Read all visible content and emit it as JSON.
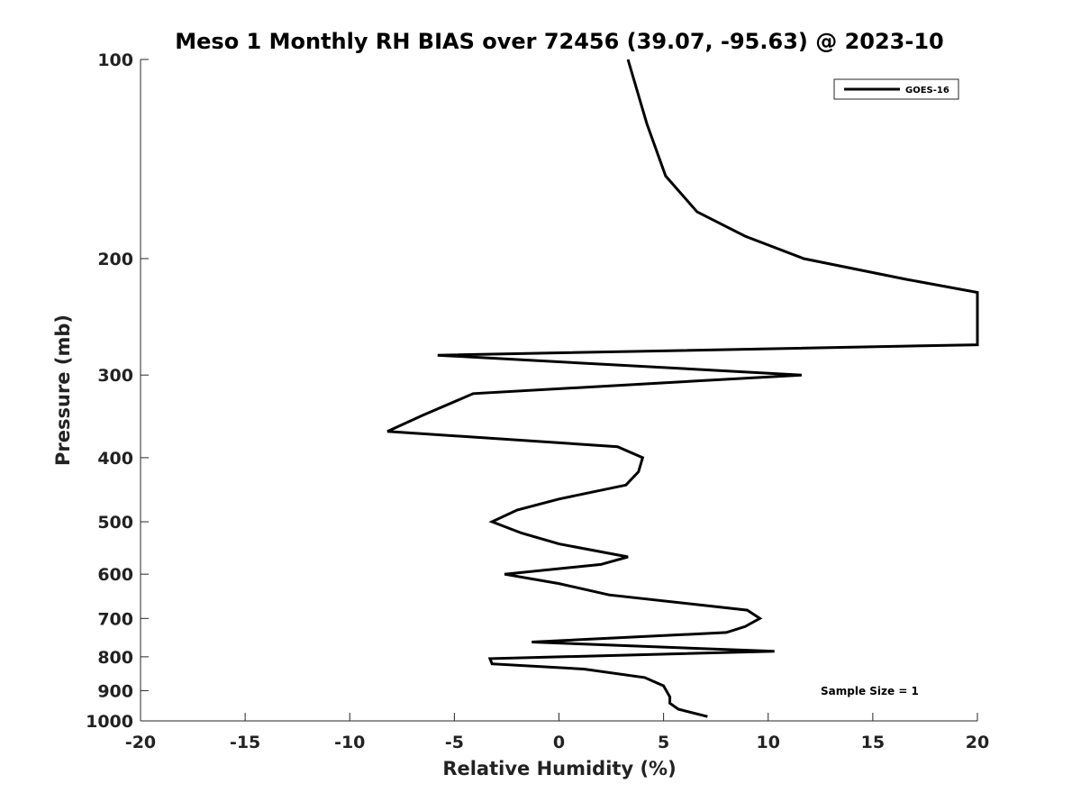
{
  "chart_data": {
    "type": "line",
    "title": "Meso 1 Monthly RH BIAS over 72456 (39.07, -95.63) @ 2023-10",
    "xlabel": "Relative Humidity (%)",
    "ylabel": "Pressure (mb)",
    "xlim": [
      -20,
      20
    ],
    "ylim": [
      1000,
      100
    ],
    "y_scale": "log",
    "x_ticks": [
      -20,
      -15,
      -10,
      -5,
      0,
      5,
      10,
      15,
      20
    ],
    "y_ticks": [
      100,
      200,
      300,
      400,
      500,
      600,
      700,
      800,
      900,
      1000
    ],
    "grid": false,
    "legend_position": "top-right",
    "series": [
      {
        "name": "GOES-16",
        "color": "#000000",
        "points": [
          {
            "x": 3.3,
            "y": 100
          },
          {
            "x": 4.2,
            "y": 125
          },
          {
            "x": 5.1,
            "y": 150
          },
          {
            "x": 6.6,
            "y": 170
          },
          {
            "x": 8.9,
            "y": 185
          },
          {
            "x": 11.7,
            "y": 200
          },
          {
            "x": 16.6,
            "y": 215
          },
          {
            "x": 20,
            "y": 225
          },
          {
            "x": 20,
            "y": 270
          },
          {
            "x": -5.8,
            "y": 280
          },
          {
            "x": 11.6,
            "y": 300
          },
          {
            "x": -4.1,
            "y": 320
          },
          {
            "x": -6.5,
            "y": 345
          },
          {
            "x": -8.2,
            "y": 365
          },
          {
            "x": 2.8,
            "y": 385
          },
          {
            "x": 4.0,
            "y": 400
          },
          {
            "x": 3.8,
            "y": 420
          },
          {
            "x": 3.2,
            "y": 440
          },
          {
            "x": 0.0,
            "y": 462
          },
          {
            "x": -2.0,
            "y": 480
          },
          {
            "x": -3.2,
            "y": 500
          },
          {
            "x": -1.8,
            "y": 520
          },
          {
            "x": 0.0,
            "y": 540
          },
          {
            "x": 3.3,
            "y": 565
          },
          {
            "x": 2.0,
            "y": 580
          },
          {
            "x": -2.6,
            "y": 600
          },
          {
            "x": 0.0,
            "y": 620
          },
          {
            "x": 2.4,
            "y": 645
          },
          {
            "x": 9.0,
            "y": 680
          },
          {
            "x": 9.6,
            "y": 700
          },
          {
            "x": 8.9,
            "y": 720
          },
          {
            "x": 8.0,
            "y": 735
          },
          {
            "x": -1.3,
            "y": 760
          },
          {
            "x": 10.3,
            "y": 785
          },
          {
            "x": -3.3,
            "y": 805
          },
          {
            "x": -3.2,
            "y": 820
          },
          {
            "x": 1.2,
            "y": 835
          },
          {
            "x": 4.1,
            "y": 860
          },
          {
            "x": 5.0,
            "y": 885
          },
          {
            "x": 5.3,
            "y": 920
          },
          {
            "x": 5.3,
            "y": 940
          },
          {
            "x": 5.7,
            "y": 960
          },
          {
            "x": 7.1,
            "y": 985
          }
        ]
      }
    ],
    "annotations": [
      "Sample Size = 1"
    ]
  }
}
